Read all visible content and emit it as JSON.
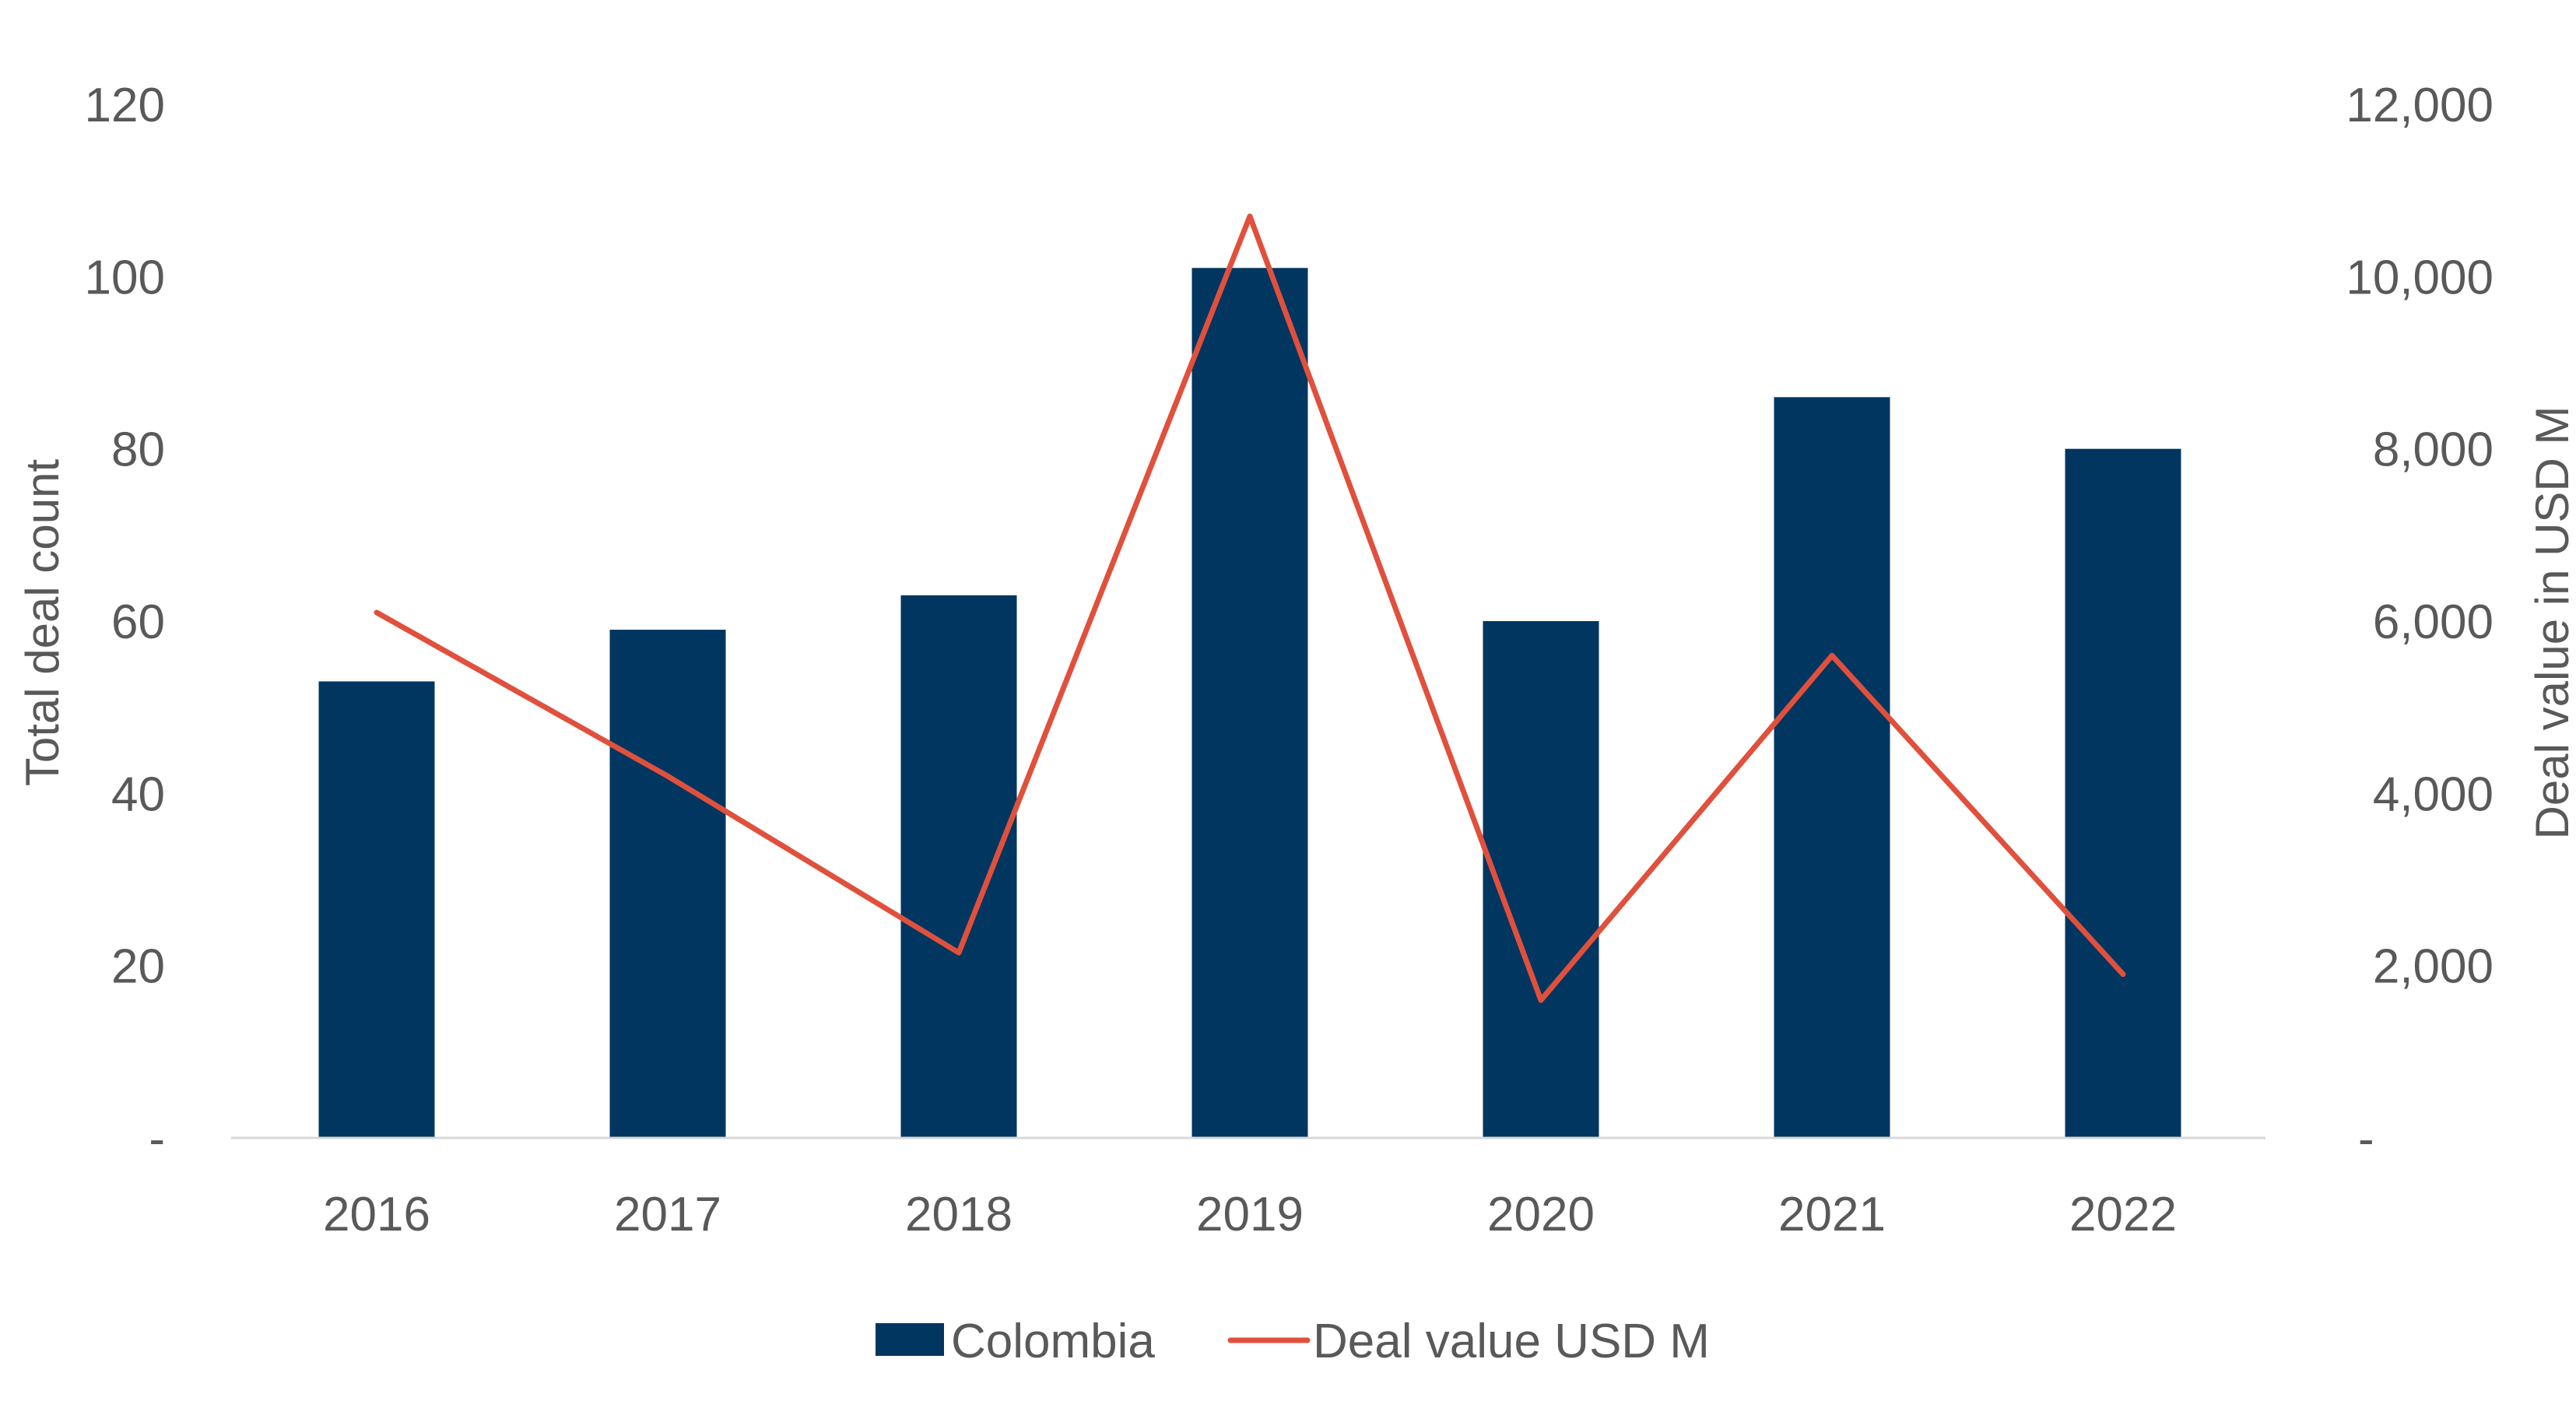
{
  "chart_data": {
    "type": "bar+line",
    "categories": [
      "2016",
      "2017",
      "2018",
      "2019",
      "2020",
      "2021",
      "2022"
    ],
    "series": [
      {
        "name": "Colombia",
        "type": "bar",
        "axis": "left",
        "color": "#003660",
        "values": [
          53,
          59,
          63,
          101,
          60,
          86,
          80
        ]
      },
      {
        "name": "Deal value USD M",
        "type": "line",
        "axis": "right",
        "color": "#E0503C",
        "values": [
          6100,
          4200,
          2150,
          10700,
          1600,
          5600,
          1900
        ]
      }
    ],
    "ylabel": "Total deal count",
    "y2label": "Deal value in USD M",
    "ylim": [
      0,
      120
    ],
    "y2lim": [
      0,
      12000
    ],
    "yticks": [
      "-",
      "20",
      "40",
      "60",
      "80",
      "100",
      "120"
    ],
    "y2ticks": [
      "-",
      "2,000",
      "4,000",
      "6,000",
      "8,000",
      "10,000",
      "12,000"
    ],
    "grid": false,
    "legend": "bottom"
  }
}
